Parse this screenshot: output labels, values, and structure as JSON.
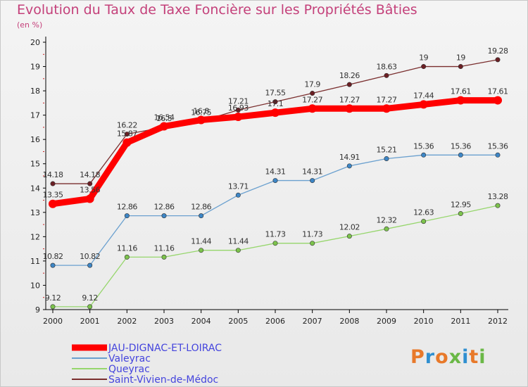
{
  "title": "Evolution du Taux de Taxe Foncière sur les Propriétés Bâties",
  "subtitle": "(en %)",
  "logo": {
    "text": "Proxiti",
    "colors": [
      "#e8792a",
      "#2f8fd0",
      "#e8792a",
      "#6ab846",
      "#2f8fd0",
      "#e8792a",
      "#6ab846"
    ]
  },
  "chart_data": {
    "type": "line",
    "title": "Evolution du Taux de Taxe Foncière sur les Propriétés Bâties",
    "ylabel": "(en %)",
    "xlabel": "",
    "categories": [
      "2000",
      "2001",
      "2002",
      "2003",
      "2004",
      "2005",
      "2006",
      "2007",
      "2008",
      "2009",
      "2010",
      "2011",
      "2012"
    ],
    "ylim": [
      9,
      20
    ],
    "yticks": [
      "9",
      "10",
      "11",
      "12",
      "13",
      "14",
      "15",
      "16",
      "17",
      "18",
      "19",
      "20"
    ],
    "series": [
      {
        "name": "Saint-Vivien-de-Médoc",
        "color": "#7a2e2e",
        "marker": "#6b1f24",
        "values": [
          14.18,
          14.18,
          16.22,
          16.5,
          16.75,
          17.21,
          17.55,
          17.9,
          18.26,
          18.63,
          19,
          19,
          19.28
        ],
        "labels": [
          "14.18",
          "14.18",
          "16.22",
          "16.5",
          "16.75",
          "17.21",
          "17.55",
          "17.9",
          "18.26",
          "18.63",
          "19",
          "19",
          "19.28"
        ]
      },
      {
        "name": "Valeyrac",
        "color": "#6aa0cf",
        "marker": "#3d86c6",
        "values": [
          10.82,
          10.82,
          12.86,
          12.86,
          12.86,
          13.71,
          14.31,
          14.31,
          14.91,
          15.21,
          15.36,
          15.36,
          15.36
        ],
        "labels": [
          "10.82",
          "10.82",
          "12.86",
          "12.86",
          "12.86",
          "13.71",
          "14.31",
          "14.31",
          "14.91",
          "15.21",
          "15.36",
          "15.36",
          "15.36"
        ]
      },
      {
        "name": "Queyrac",
        "color": "#96d66c",
        "marker": "#7cc34c",
        "values": [
          9.12,
          9.12,
          11.16,
          11.16,
          11.44,
          11.44,
          11.73,
          11.73,
          12.02,
          12.32,
          12.63,
          12.95,
          13.28
        ],
        "labels": [
          "9.12",
          "9.12",
          "11.16",
          "11.16",
          "11.44",
          "11.44",
          "11.73",
          "11.73",
          "12.02",
          "12.32",
          "12.63",
          "12.95",
          "13.28"
        ]
      },
      {
        "name": "JAU-DIGNAC-ET-LOIRAC",
        "color": "#ff0000",
        "marker": "#ff0000",
        "values": [
          13.35,
          13.56,
          15.87,
          16.54,
          16.8,
          16.93,
          17.1,
          17.27,
          17.27,
          17.27,
          17.44,
          17.61,
          17.61
        ],
        "labels": [
          "13.35",
          "13.56",
          "15.87",
          "16.54",
          "16.8",
          "16.93",
          "17.1",
          "17.27",
          "17.27",
          "17.27",
          "17.44",
          "17.61",
          "17.61"
        ]
      }
    ],
    "legend": [
      {
        "name": "JAU-DIGNAC-ET-LOIRAC",
        "color": "#ff0000",
        "text_color": "#4444dd"
      },
      {
        "name": "Valeyrac",
        "color": "#6aa0cf",
        "text_color": "#4444dd"
      },
      {
        "name": "Queyrac",
        "color": "#96d66c",
        "text_color": "#4444dd"
      },
      {
        "name": "Saint-Vivien-de-Médoc",
        "color": "#7a2e2e",
        "text_color": "#4444dd"
      }
    ],
    "legend_position": "bottom-left",
    "grid": false
  }
}
